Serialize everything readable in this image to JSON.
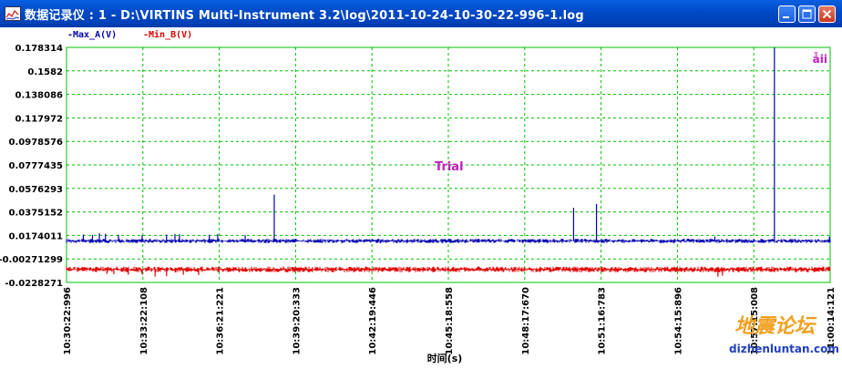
{
  "window": {
    "title": "数据记录仪 : 1 - D:\\VIRTINS Multi-Instrument 3.2\\log\\2011-10-24-10-30-22-996-1.log",
    "icon": "chart-app-icon",
    "controls": [
      "minimize-icon",
      "maximize-icon",
      "close-icon"
    ]
  },
  "watermark": {
    "logo_text": "地震论坛",
    "site": "dizhenluntan.com"
  },
  "chart_data": {
    "type": "line",
    "title": "",
    "xlabel": "时间(s)",
    "ylabel": "",
    "x_tick_labels": [
      "10:30:22:996",
      "10:33:22:108",
      "10:36:21:221",
      "10:39:20:333",
      "10:42:19:446",
      "10:45:18:558",
      "10:48:17:670",
      "10:51:16:783",
      "10:54:15:896",
      "10:57:15:008",
      "11:00:14:121"
    ],
    "y_tick_labels": [
      "0.178314",
      "0.1582",
      "0.138086",
      "0.117972",
      "0.0978576",
      "0.0777435",
      "0.0576293",
      "0.0375152",
      "0.0174011",
      "-0.00271299",
      "-0.0228271"
    ],
    "ylim": [
      -0.0228271,
      0.178314
    ],
    "grid": true,
    "legend_position": "top-left",
    "corner_label": "ǡii",
    "annotation": "Trial",
    "colors": {
      "plot_border": "#00c000",
      "grid": "#00c000",
      "max_series": "#0000b0",
      "min_series": "#e00000",
      "annotation": "#c020c0",
      "corner_label": "#c020c0"
    },
    "series": [
      {
        "name": "Max_A(V)",
        "baseline": 0.0127,
        "spikes": [
          {
            "x_frac": 0.022,
            "y": 0.0182
          },
          {
            "x_frac": 0.034,
            "y": 0.0178
          },
          {
            "x_frac": 0.043,
            "y": 0.0192
          },
          {
            "x_frac": 0.051,
            "y": 0.0188
          },
          {
            "x_frac": 0.068,
            "y": 0.0179
          },
          {
            "x_frac": 0.099,
            "y": 0.0176
          },
          {
            "x_frac": 0.131,
            "y": 0.0181
          },
          {
            "x_frac": 0.142,
            "y": 0.0186
          },
          {
            "x_frac": 0.148,
            "y": 0.0184
          },
          {
            "x_frac": 0.187,
            "y": 0.018
          },
          {
            "x_frac": 0.198,
            "y": 0.0186
          },
          {
            "x_frac": 0.234,
            "y": 0.0176
          },
          {
            "x_frac": 0.272,
            "y": 0.0523
          },
          {
            "x_frac": 0.664,
            "y": 0.041
          },
          {
            "x_frac": 0.694,
            "y": 0.0443
          },
          {
            "x_frac": 0.849,
            "y": 0.0165
          },
          {
            "x_frac": 0.927,
            "y": 0.178
          },
          {
            "x_frac": 0.999,
            "y": 0.0165
          }
        ]
      },
      {
        "name": "Min_B(V)",
        "baseline": -0.0117,
        "spikes": [
          {
            "x_frac": 0.053,
            "y": -0.0155
          },
          {
            "x_frac": 0.062,
            "y": -0.0158
          },
          {
            "x_frac": 0.081,
            "y": -0.0162
          },
          {
            "x_frac": 0.099,
            "y": -0.016
          },
          {
            "x_frac": 0.116,
            "y": -0.0178
          },
          {
            "x_frac": 0.131,
            "y": -0.0175
          },
          {
            "x_frac": 0.153,
            "y": -0.0162
          },
          {
            "x_frac": 0.173,
            "y": -0.0165
          },
          {
            "x_frac": 0.853,
            "y": -0.018
          },
          {
            "x_frac": 0.859,
            "y": -0.017
          }
        ]
      }
    ]
  }
}
